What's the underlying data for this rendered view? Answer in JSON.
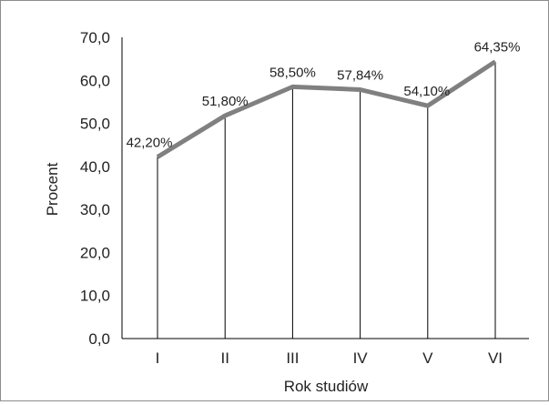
{
  "chart_data": {
    "type": "line",
    "title": "",
    "xlabel": "Rok studiów",
    "ylabel": "Procent",
    "categories": [
      "I",
      "II",
      "III",
      "IV",
      "V",
      "VI"
    ],
    "series": [
      {
        "values": [
          42.2,
          51.8,
          58.5,
          57.84,
          54.1,
          64.35
        ],
        "labels": [
          "42,20%",
          "51,80%",
          "58,50%",
          "57,84%",
          "54,10%",
          "64,35%"
        ],
        "color": "#808080"
      }
    ],
    "ylim": [
      0,
      70
    ],
    "yticks": [
      0,
      10,
      20,
      30,
      40,
      50,
      60,
      70
    ],
    "ytick_labels": [
      "0,0",
      "10,0",
      "20,0",
      "30,0",
      "40,0",
      "50,0",
      "60,0",
      "70,0"
    ],
    "drop_lines": true,
    "grid": false,
    "legend": "none"
  }
}
